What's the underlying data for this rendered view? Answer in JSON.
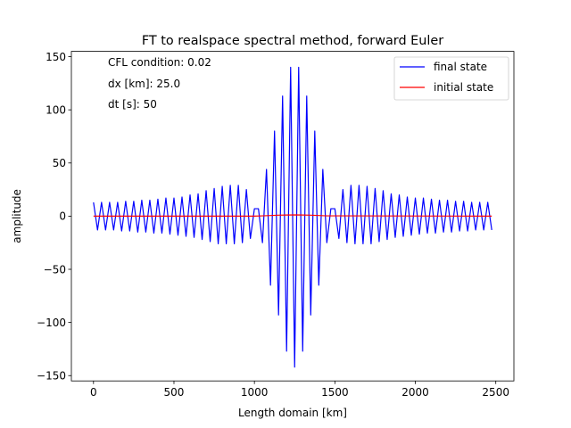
{
  "chart_data": {
    "type": "line",
    "title": "FT to realspace  spectral method, forward Euler",
    "xlabel": "Length domain [km]",
    "ylabel": "amplitude",
    "xlim": [
      -137.5,
      2612.5
    ],
    "ylim": [
      -155,
      155
    ],
    "xticks": [
      0,
      500,
      1000,
      1500,
      2000,
      2500
    ],
    "xtick_labels": [
      "0",
      "500",
      "1000",
      "1500",
      "2000",
      "2500"
    ],
    "yticks": [
      -150,
      -100,
      -50,
      0,
      50,
      100,
      150
    ],
    "ytick_labels": [
      "−150",
      "−100",
      "−50",
      "0",
      "50",
      "100",
      "150"
    ],
    "grid": false,
    "legend_position": "top-right",
    "annotations": [
      "CFL condition: 0.02",
      "dx [km]: 25.0",
      "dt [s]: 50"
    ],
    "series": [
      {
        "name": "final state",
        "color": "#0000ff",
        "x": [
          0,
          25,
          50,
          75,
          100,
          125,
          150,
          175,
          200,
          225,
          250,
          275,
          300,
          325,
          350,
          375,
          400,
          425,
          450,
          475,
          500,
          525,
          550,
          575,
          600,
          625,
          650,
          675,
          700,
          725,
          750,
          775,
          800,
          825,
          850,
          875,
          900,
          925,
          950,
          975,
          1000,
          1025,
          1050,
          1075,
          1100,
          1125,
          1150,
          1175,
          1200,
          1225,
          1250,
          1275,
          1300,
          1325,
          1350,
          1375,
          1400,
          1425,
          1450,
          1475,
          1500,
          1525,
          1550,
          1575,
          1600,
          1625,
          1650,
          1675,
          1700,
          1725,
          1750,
          1775,
          1800,
          1825,
          1850,
          1875,
          1900,
          1925,
          1950,
          1975,
          2000,
          2025,
          2050,
          2075,
          2100,
          2125,
          2150,
          2175,
          2200,
          2225,
          2250,
          2275,
          2300,
          2325,
          2350,
          2375,
          2400,
          2425,
          2450,
          2475
        ],
        "y": [
          13,
          -13,
          13,
          -13,
          13,
          -13,
          13,
          -14,
          14,
          -14,
          14,
          -15,
          15,
          -15,
          15,
          -16,
          16,
          -16,
          17,
          -17,
          17,
          -18,
          18,
          -19,
          20,
          -20,
          21,
          -22,
          24,
          -24,
          26,
          -26,
          28,
          -26,
          29,
          -26,
          29,
          -25,
          25,
          -21,
          7,
          7,
          -25,
          44,
          -65,
          80,
          -93,
          113,
          -127,
          140,
          -142,
          140,
          -127,
          113,
          -93,
          80,
          -65,
          44,
          -25,
          7,
          7,
          -21,
          25,
          -25,
          29,
          -26,
          29,
          -26,
          28,
          -26,
          26,
          -24,
          24,
          -22,
          21,
          -20,
          20,
          -19,
          18,
          -18,
          17,
          -17,
          17,
          -16,
          16,
          -16,
          15,
          -15,
          15,
          -15,
          14,
          -14,
          14,
          -14,
          13,
          -13,
          13,
          -13,
          13,
          -13
        ]
      },
      {
        "name": "initial state",
        "color": "#ff0000",
        "x": [
          0,
          1000,
          1050,
          1100,
          1150,
          1200,
          1250,
          1300,
          1350,
          1400,
          1450,
          2475
        ],
        "y": [
          0,
          0,
          0.3,
          0.6,
          0.9,
          1.1,
          1.2,
          1.1,
          0.9,
          0.6,
          0.3,
          0
        ]
      }
    ]
  }
}
